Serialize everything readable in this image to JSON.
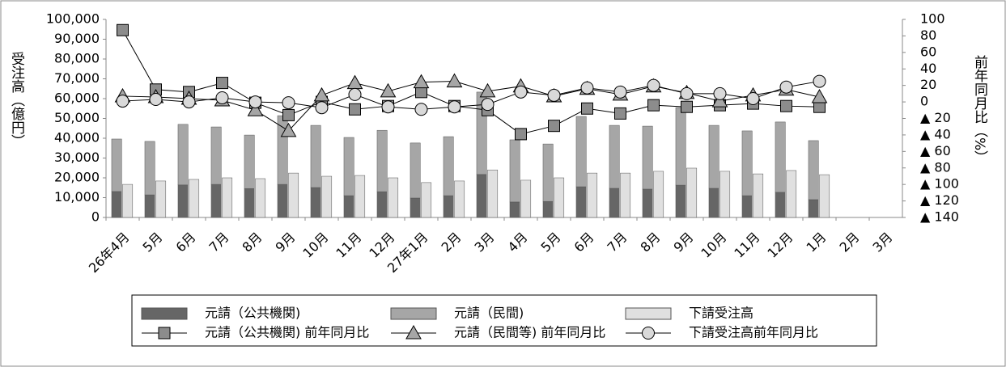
{
  "chart_data": {
    "type": "bar-line",
    "y_label": "受注高（億円）",
    "y2_label": "前年同月比（%）",
    "categories": [
      "26年4月",
      "5月",
      "6月",
      "7月",
      "8月",
      "9月",
      "10月",
      "11月",
      "12月",
      "27年1月",
      "2月",
      "3月",
      "4月",
      "5月",
      "6月",
      "7月",
      "8月",
      "9月",
      "10月",
      "11月",
      "12月",
      "1月",
      "2月",
      "3月"
    ],
    "ylim": [
      0,
      100000
    ],
    "yticks": [
      0,
      {
        "value": 10000,
        "label": "10,000"
      },
      {
        "value": 20000,
        "label": "20,000"
      },
      {
        "value": 30000,
        "label": "30,000"
      },
      {
        "value": 40000,
        "label": "40,000"
      },
      {
        "value": 50000,
        "label": "50,000"
      },
      {
        "value": 60000,
        "label": "60,000"
      },
      {
        "value": 70000,
        "label": "70,000"
      },
      {
        "value": 80000,
        "label": "80,000"
      },
      {
        "value": 90000,
        "label": "90,000"
      },
      {
        "value": 100000,
        "label": "100,000"
      }
    ],
    "y2lim": [
      -140,
      100
    ],
    "y2ticks": [
      {
        "value": -140,
        "label": "▲ 140"
      },
      {
        "value": -120,
        "label": "▲ 120"
      },
      {
        "value": -100,
        "label": "▲ 100"
      },
      {
        "value": -80,
        "label": "▲ 80"
      },
      {
        "value": -60,
        "label": "▲ 60"
      },
      {
        "value": -40,
        "label": "▲ 40"
      },
      {
        "value": -20,
        "label": "▲ 20"
      },
      0,
      20,
      40,
      60,
      80,
      100
    ],
    "series": [
      {
        "name": "元請（公共機関)",
        "kind": "bar",
        "stacked": true,
        "color": "#666666",
        "values": [
          13100,
          11400,
          16400,
          16700,
          14600,
          16700,
          15100,
          11000,
          13000,
          9800,
          11000,
          21700,
          7800,
          8100,
          15500,
          14700,
          14300,
          16300,
          14700,
          11000,
          12700,
          9000,
          null,
          null
        ]
      },
      {
        "name": "元請（民間)",
        "kind": "bar",
        "stacked": true,
        "color": "#a6a6a6",
        "values": [
          26500,
          27000,
          30600,
          29000,
          27000,
          34700,
          31400,
          29400,
          31000,
          27800,
          29800,
          41600,
          31400,
          29000,
          35500,
          31800,
          31800,
          39200,
          31800,
          32700,
          35500,
          29800,
          null,
          null
        ]
      },
      {
        "name": "下請受注高",
        "kind": "bar",
        "stacked": false,
        "color": "#e0e0e0",
        "values": [
          16700,
          18400,
          19200,
          20000,
          19600,
          22400,
          20800,
          21200,
          20000,
          17600,
          18400,
          24000,
          18800,
          20000,
          22400,
          22400,
          23300,
          24900,
          23300,
          22000,
          23700,
          21600,
          null,
          null
        ]
      },
      {
        "name": "元請（公共機関) 前年同月比",
        "kind": "line",
        "axis": "y2",
        "marker": "square",
        "color": "#8c8c8c",
        "values": [
          87,
          15,
          12,
          23,
          -1,
          -16,
          0,
          -9,
          -5,
          12,
          -5,
          -10,
          -39,
          -29,
          -8,
          -14,
          -4,
          -6,
          -4,
          -2,
          -5,
          -6,
          null,
          null
        ]
      },
      {
        "name": "元請（民間等) 前年同月比",
        "kind": "line",
        "axis": "y2",
        "marker": "triangle",
        "color": "#a6a6a6",
        "values": [
          7,
          6,
          4,
          2,
          -10,
          -35,
          8,
          23,
          13,
          24,
          25,
          13,
          19,
          7,
          16,
          9,
          19,
          11,
          1,
          8,
          15,
          6,
          null,
          null
        ]
      },
      {
        "name": "下請受注高前年同月比",
        "kind": "line",
        "axis": "y2",
        "marker": "circle",
        "color": "#d9d9d9",
        "values": [
          1,
          3,
          0,
          5,
          0,
          -1,
          -7,
          9,
          -6,
          -9,
          -6,
          -3,
          12,
          8,
          17,
          12,
          20,
          10,
          10,
          4,
          18,
          25,
          null,
          null
        ]
      }
    ]
  }
}
